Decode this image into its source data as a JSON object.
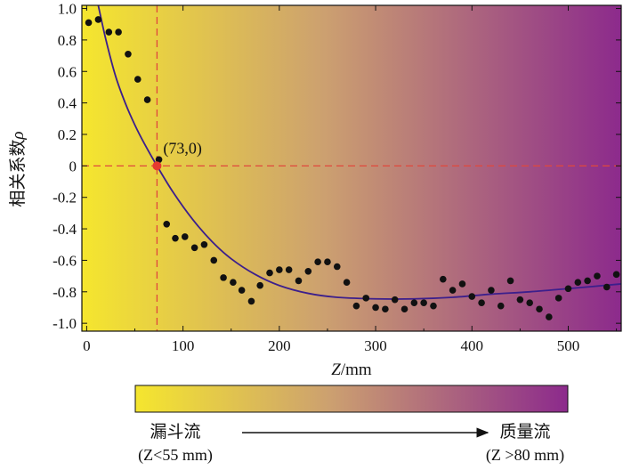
{
  "chart_data": {
    "type": "scatter",
    "xlabel_italic": "Z",
    "xlabel_rest": "/mm",
    "ylabel_text": "相关系数",
    "ylabel_symbol": "ρ",
    "xlim": [
      -5,
      555
    ],
    "ylim": [
      -1.05,
      1.02
    ],
    "x_ticks": [
      0,
      100,
      200,
      300,
      400,
      500
    ],
    "x_tick_labels": [
      "0",
      "100",
      "200",
      "300",
      "400",
      "500"
    ],
    "y_ticks": [
      1.0,
      0.8,
      0.6,
      0.4,
      0.2,
      0,
      -0.2,
      -0.4,
      -0.6,
      -0.8,
      -1.0
    ],
    "y_tick_labels": [
      "1.0",
      "0.8",
      "0.6",
      "0.4",
      "0.2",
      "0",
      "-0.2",
      "-0.4",
      "-0.6",
      "-0.8",
      "-1.0"
    ],
    "background_gradient": [
      "#f5e62e",
      "#cca070",
      "#8c2a8c"
    ],
    "point_color": "#111111",
    "points": [
      [
        2,
        0.91
      ],
      [
        12,
        0.93
      ],
      [
        23,
        0.85
      ],
      [
        33,
        0.85
      ],
      [
        43,
        0.71
      ],
      [
        53,
        0.55
      ],
      [
        63,
        0.42
      ],
      [
        75,
        0.04
      ],
      [
        83,
        -0.37
      ],
      [
        92,
        -0.46
      ],
      [
        102,
        -0.45
      ],
      [
        112,
        -0.52
      ],
      [
        122,
        -0.5
      ],
      [
        132,
        -0.6
      ],
      [
        142,
        -0.71
      ],
      [
        152,
        -0.74
      ],
      [
        161,
        -0.79
      ],
      [
        171,
        -0.86
      ],
      [
        180,
        -0.76
      ],
      [
        190,
        -0.68
      ],
      [
        200,
        -0.66
      ],
      [
        210,
        -0.66
      ],
      [
        220,
        -0.73
      ],
      [
        230,
        -0.67
      ],
      [
        240,
        -0.61
      ],
      [
        250,
        -0.61
      ],
      [
        260,
        -0.64
      ],
      [
        270,
        -0.74
      ],
      [
        280,
        -0.89
      ],
      [
        290,
        -0.84
      ],
      [
        300,
        -0.9
      ],
      [
        310,
        -0.91
      ],
      [
        320,
        -0.85
      ],
      [
        330,
        -0.91
      ],
      [
        340,
        -0.87
      ],
      [
        350,
        -0.87
      ],
      [
        360,
        -0.89
      ],
      [
        370,
        -0.72
      ],
      [
        380,
        -0.79
      ],
      [
        390,
        -0.75
      ],
      [
        400,
        -0.83
      ],
      [
        410,
        -0.87
      ],
      [
        420,
        -0.79
      ],
      [
        430,
        -0.89
      ],
      [
        440,
        -0.73
      ],
      [
        450,
        -0.85
      ],
      [
        460,
        -0.87
      ],
      [
        470,
        -0.91
      ],
      [
        480,
        -0.96
      ],
      [
        490,
        -0.84
      ],
      [
        500,
        -0.78
      ],
      [
        510,
        -0.74
      ],
      [
        520,
        -0.73
      ],
      [
        530,
        -0.7
      ],
      [
        540,
        -0.77
      ],
      [
        550,
        -0.69
      ]
    ],
    "fit_curve": {
      "name": "fit",
      "color": "#3c1f8c",
      "points": [
        [
          12,
          1.02
        ],
        [
          20,
          0.8
        ],
        [
          30,
          0.57
        ],
        [
          40,
          0.4
        ],
        [
          50,
          0.26
        ],
        [
          60,
          0.14
        ],
        [
          73,
          0.0
        ],
        [
          90,
          -0.17
        ],
        [
          110,
          -0.34
        ],
        [
          130,
          -0.48
        ],
        [
          150,
          -0.59
        ],
        [
          175,
          -0.69
        ],
        [
          200,
          -0.76
        ],
        [
          230,
          -0.81
        ],
        [
          260,
          -0.835
        ],
        [
          300,
          -0.845
        ],
        [
          340,
          -0.845
        ],
        [
          380,
          -0.835
        ],
        [
          420,
          -0.815
        ],
        [
          460,
          -0.8
        ],
        [
          500,
          -0.78
        ],
        [
          555,
          -0.75
        ]
      ]
    },
    "reference_lines": {
      "x": 73,
      "y": 0,
      "color": "#e0483c"
    },
    "highlight_point": {
      "x": 73,
      "y": 0,
      "label": "(73,0)",
      "color": "#e53b30"
    }
  },
  "colorbar": {
    "colors": [
      "#f5e62e",
      "#cca070",
      "#8c2a8c"
    ],
    "left_label": "漏斗流",
    "left_sub": "(Z<55 mm)",
    "right_label": "质量流",
    "right_sub": "(Z >80 mm)"
  }
}
